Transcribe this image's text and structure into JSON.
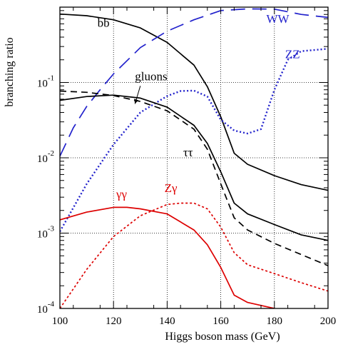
{
  "chart_data": {
    "type": "line",
    "xlabel": "Higgs boson mass (GeV)",
    "ylabel": "branching ratio",
    "xlim": [
      100,
      200
    ],
    "ylim": [
      0.0001,
      1
    ],
    "y_scale": "log",
    "grid": "dotted",
    "x_ticks": [
      {
        "value": 100,
        "label": "100"
      },
      {
        "value": 120,
        "label": "120"
      },
      {
        "value": 140,
        "label": "140"
      },
      {
        "value": 160,
        "label": "160"
      },
      {
        "value": 180,
        "label": "180"
      },
      {
        "value": 200,
        "label": "200"
      }
    ],
    "y_ticks": [
      {
        "value": 0.0001,
        "base": "10",
        "exp": "-4"
      },
      {
        "value": 0.001,
        "base": "10",
        "exp": "-3"
      },
      {
        "value": 0.01,
        "base": "10",
        "exp": "-2"
      },
      {
        "value": 0.1,
        "base": "10",
        "exp": "-1"
      }
    ],
    "series": [
      {
        "name": "bb",
        "color": "#000000",
        "dash": "solid",
        "x": [
          100,
          110,
          120,
          130,
          140,
          150,
          155,
          160,
          165,
          170,
          180,
          190,
          200
        ],
        "y": [
          0.81,
          0.77,
          0.68,
          0.53,
          0.34,
          0.17,
          0.088,
          0.035,
          0.0115,
          0.0082,
          0.0058,
          0.0044,
          0.0037
        ]
      },
      {
        "name": "WW",
        "color": "#2222cc",
        "dash": "longdash",
        "x": [
          100,
          105,
          110,
          115,
          120,
          130,
          140,
          150,
          160,
          170,
          180,
          190,
          200
        ],
        "y": [
          0.0105,
          0.025,
          0.048,
          0.08,
          0.13,
          0.29,
          0.48,
          0.68,
          0.9,
          0.95,
          0.94,
          0.8,
          0.73
        ]
      },
      {
        "name": "ZZ",
        "color": "#2222cc",
        "dash": "dotted",
        "x": [
          100,
          110,
          120,
          130,
          140,
          145,
          150,
          155,
          160,
          165,
          170,
          175,
          180,
          185,
          190,
          200
        ],
        "y": [
          0.00105,
          0.0045,
          0.015,
          0.04,
          0.066,
          0.077,
          0.078,
          0.065,
          0.032,
          0.023,
          0.021,
          0.024,
          0.08,
          0.2,
          0.26,
          0.28
        ]
      },
      {
        "name": "gluons",
        "color": "#000000",
        "dash": "dashed",
        "x": [
          100,
          110,
          120,
          130,
          140,
          150,
          155,
          160,
          165,
          170,
          180,
          190,
          200
        ],
        "y": [
          0.077,
          0.074,
          0.067,
          0.056,
          0.042,
          0.024,
          0.013,
          0.0045,
          0.0016,
          0.0011,
          0.00073,
          0.00052,
          0.00037
        ]
      },
      {
        "name": "ττ",
        "color": "#000000",
        "dash": "solid",
        "x": [
          100,
          110,
          120,
          130,
          140,
          150,
          155,
          160,
          165,
          170,
          180,
          190,
          200
        ],
        "y": [
          0.058,
          0.065,
          0.068,
          0.062,
          0.047,
          0.027,
          0.0155,
          0.0065,
          0.0025,
          0.0018,
          0.0013,
          0.00095,
          0.0008
        ]
      },
      {
        "name": "γγ",
        "color": "#dd0000",
        "dash": "solid",
        "x": [
          100,
          110,
          120,
          125,
          130,
          140,
          150,
          155,
          160,
          165,
          170,
          180
        ],
        "y": [
          0.0015,
          0.0019,
          0.0022,
          0.0022,
          0.0021,
          0.0018,
          0.0011,
          0.0007,
          0.00035,
          0.00015,
          0.00012,
          0.0001
        ]
      },
      {
        "name": "Zγ",
        "color": "#dd0000",
        "dash": "shortdash",
        "x": [
          100,
          110,
          120,
          130,
          140,
          145,
          150,
          155,
          160,
          165,
          170,
          180,
          190,
          200
        ],
        "y": [
          0.0001,
          0.00033,
          0.0009,
          0.0017,
          0.0024,
          0.0025,
          0.0025,
          0.0021,
          0.0012,
          0.00055,
          0.00038,
          0.00029,
          0.00022,
          0.00017
        ]
      }
    ],
    "series_labels": [
      {
        "text": "bb",
        "color": "#000000",
        "at": [
          114,
          0.55
        ]
      },
      {
        "text": "WW",
        "color": "#2222cc",
        "at": [
          177,
          0.62
        ]
      },
      {
        "text": "ZZ",
        "color": "#2222cc",
        "at": [
          184,
          0.21
        ]
      },
      {
        "text": "gluons",
        "color": "#000000",
        "at": [
          128,
          0.107
        ]
      },
      {
        "text": "ττ",
        "color": "#000000",
        "at": [
          146,
          0.0105
        ]
      },
      {
        "text": "γγ",
        "color": "#dd0000",
        "at": [
          121,
          0.0029
        ]
      },
      {
        "text": "Zγ",
        "color": "#dd0000",
        "at": [
          139,
          0.0035
        ]
      }
    ],
    "gluons_arrow": {
      "from": [
        130,
        0.09
      ],
      "to": [
        128,
        0.052
      ]
    }
  }
}
